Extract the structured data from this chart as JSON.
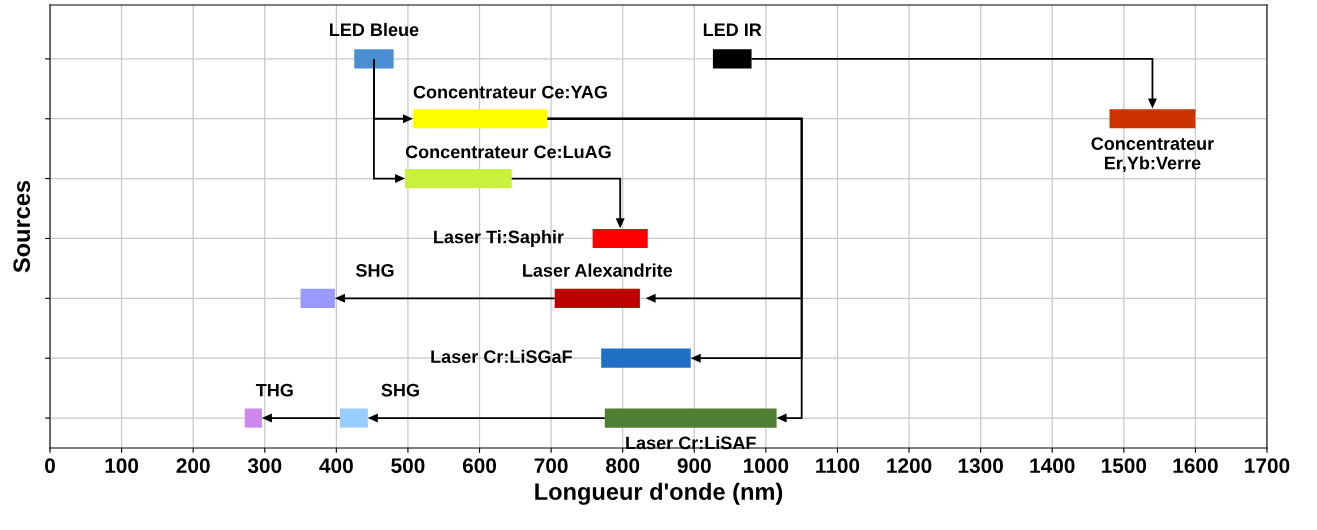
{
  "chart_data": {
    "type": "bar",
    "orientation": "horizontal",
    "xlabel": "Longueur d'onde (nm)",
    "ylabel": "Sources",
    "categories": [
      null,
      null,
      null,
      null,
      null,
      null,
      null
    ],
    "xlim": [
      0,
      1700
    ],
    "xticks": [
      0,
      100,
      200,
      300,
      400,
      500,
      600,
      700,
      800,
      900,
      1000,
      1100,
      1200,
      1300,
      1400,
      1500,
      1600,
      1700
    ],
    "grid": true,
    "tick_labels": "x",
    "series": [
      {
        "name": "LED Bleue",
        "color": "#4a8fd4",
        "values": [
          55,
          null,
          null,
          null,
          null,
          null,
          null
        ],
        "base": [
          425,
          null,
          null,
          null,
          null,
          null,
          null
        ]
      },
      {
        "name": "LED IR",
        "color": "#000000",
        "values": [
          54,
          null,
          null,
          null,
          null,
          null,
          null
        ],
        "base": [
          926,
          null,
          null,
          null,
          null,
          null,
          null
        ]
      },
      {
        "name": "Concentrateur Ce:YAG",
        "color": "#ffff00",
        "values": [
          null,
          188,
          null,
          null,
          null,
          null,
          null
        ],
        "base": [
          null,
          507,
          null,
          null,
          null,
          null,
          null
        ]
      },
      {
        "name": "Concentrateur Ce:LuAG",
        "color": "#c8f03c",
        "values": [
          null,
          null,
          149,
          null,
          null,
          null,
          null
        ],
        "base": [
          null,
          null,
          496,
          null,
          null,
          null,
          null
        ]
      },
      {
        "name": "Concentrateur\nEr,Yb:Verre",
        "color": "#cc3300",
        "values": [
          null,
          120,
          null,
          null,
          null,
          null,
          null
        ],
        "base": [
          null,
          1480,
          null,
          null,
          null,
          null,
          null
        ]
      },
      {
        "name": "Laser Ti:Saphir",
        "color": "#ff0000",
        "values": [
          null,
          null,
          null,
          77,
          null,
          null,
          null
        ],
        "base": [
          null,
          null,
          null,
          758,
          null,
          null,
          null
        ]
      },
      {
        "name": "Laser Alexandrite",
        "color": "#bb0000",
        "values": [
          null,
          null,
          null,
          null,
          119,
          null,
          null
        ],
        "base": [
          null,
          null,
          null,
          null,
          705,
          null,
          null
        ]
      },
      {
        "name": "SHG",
        "color": "#9999ff",
        "values": [
          null,
          null,
          null,
          null,
          48,
          null,
          null
        ],
        "base": [
          null,
          null,
          null,
          null,
          350,
          null,
          null
        ]
      },
      {
        "name": "Laser Cr:LiSGaF",
        "color": "#1f6fc4",
        "values": [
          null,
          null,
          null,
          null,
          null,
          125,
          null
        ],
        "base": [
          null,
          null,
          null,
          null,
          null,
          770,
          null
        ]
      },
      {
        "name": "Laser Cr:LiSAF",
        "color": "#4f7f32",
        "values": [
          null,
          null,
          null,
          null,
          null,
          null,
          240
        ],
        "base": [
          null,
          null,
          null,
          null,
          null,
          null,
          775
        ]
      },
      {
        "name": "SHG",
        "color": "#99ccff",
        "values": [
          null,
          null,
          null,
          null,
          null,
          null,
          39
        ],
        "base": [
          null,
          null,
          null,
          null,
          null,
          null,
          405
        ]
      },
      {
        "name": "THG",
        "color": "#cc88ee",
        "values": [
          null,
          null,
          null,
          null,
          null,
          null,
          24
        ],
        "base": [
          null,
          null,
          null,
          null,
          null,
          null,
          272
        ]
      }
    ]
  }
}
